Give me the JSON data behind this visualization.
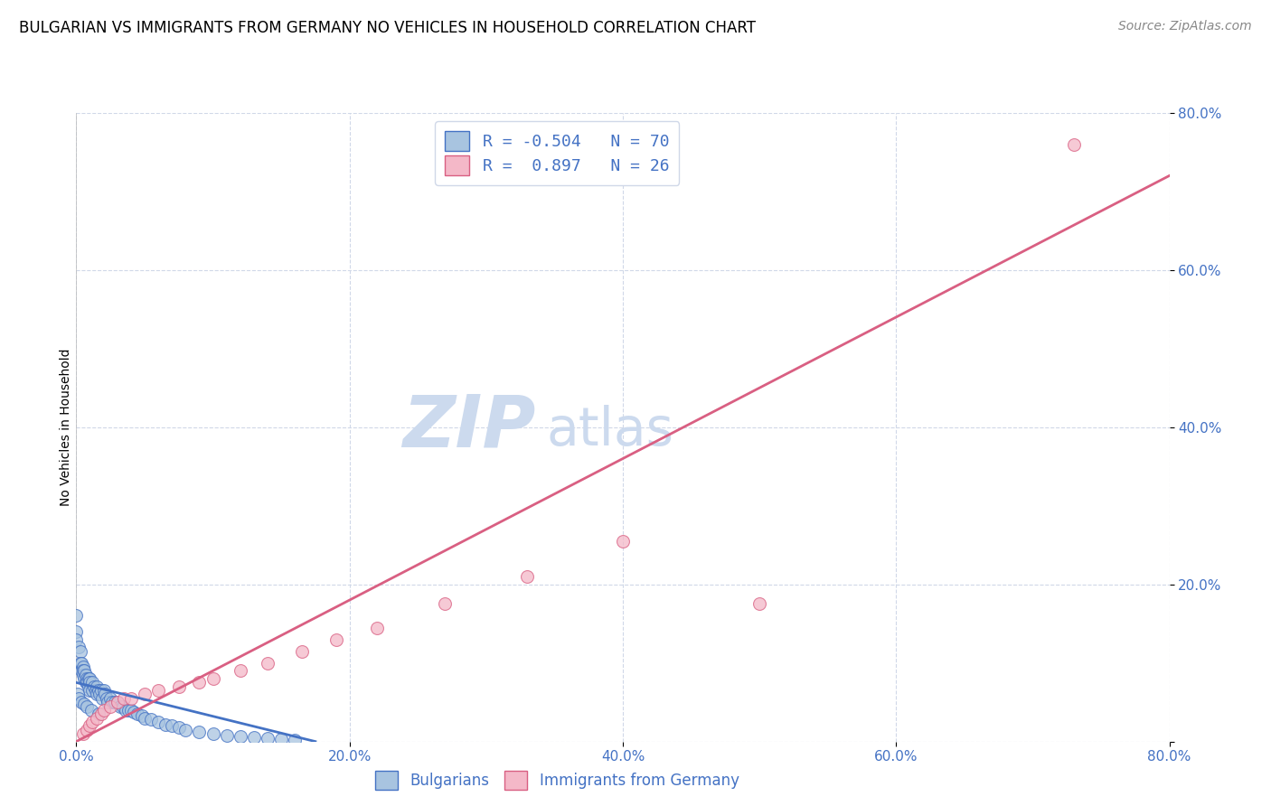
{
  "title": "BULGARIAN VS IMMIGRANTS FROM GERMANY NO VEHICLES IN HOUSEHOLD CORRELATION CHART",
  "source": "Source: ZipAtlas.com",
  "ylabel": "No Vehicles in Household",
  "xlim": [
    0.0,
    0.8
  ],
  "ylim": [
    0.0,
    0.8
  ],
  "xtick_vals": [
    0.0,
    0.2,
    0.4,
    0.6,
    0.8
  ],
  "ytick_vals": [
    0.0,
    0.2,
    0.4,
    0.6,
    0.8
  ],
  "blue_color": "#a8c4e0",
  "blue_edge_color": "#4472c4",
  "pink_color": "#f4b8c8",
  "pink_edge_color": "#d95f82",
  "axis_color": "#4472c4",
  "watermark_zip": "ZIP",
  "watermark_atlas": "atlas",
  "watermark_color": "#ccdaee",
  "bg_color": "#ffffff",
  "grid_color": "#d0d8e8",
  "title_fontsize": 12,
  "legend_r1": "-0.504",
  "legend_n1": "70",
  "legend_r2": "0.897",
  "legend_n2": "26",
  "bulgarians_x": [
    0.0,
    0.0,
    0.0,
    0.002,
    0.003,
    0.003,
    0.004,
    0.004,
    0.005,
    0.005,
    0.005,
    0.006,
    0.006,
    0.007,
    0.007,
    0.008,
    0.008,
    0.009,
    0.009,
    0.01,
    0.01,
    0.01,
    0.012,
    0.012,
    0.013,
    0.014,
    0.015,
    0.015,
    0.016,
    0.017,
    0.018,
    0.019,
    0.02,
    0.021,
    0.022,
    0.023,
    0.025,
    0.026,
    0.028,
    0.03,
    0.032,
    0.034,
    0.036,
    0.038,
    0.04,
    0.042,
    0.045,
    0.048,
    0.05,
    0.055,
    0.06,
    0.065,
    0.07,
    0.075,
    0.08,
    0.09,
    0.1,
    0.11,
    0.12,
    0.13,
    0.14,
    0.15,
    0.16,
    0.001,
    0.002,
    0.004,
    0.006,
    0.008,
    0.011,
    0.016
  ],
  "bulgarians_y": [
    0.16,
    0.14,
    0.13,
    0.12,
    0.115,
    0.1,
    0.1,
    0.09,
    0.095,
    0.09,
    0.085,
    0.09,
    0.08,
    0.085,
    0.075,
    0.08,
    0.075,
    0.08,
    0.07,
    0.08,
    0.075,
    0.065,
    0.075,
    0.065,
    0.07,
    0.065,
    0.07,
    0.06,
    0.065,
    0.06,
    0.065,
    0.055,
    0.065,
    0.06,
    0.055,
    0.05,
    0.055,
    0.05,
    0.05,
    0.05,
    0.045,
    0.045,
    0.04,
    0.04,
    0.04,
    0.038,
    0.035,
    0.033,
    0.03,
    0.028,
    0.025,
    0.022,
    0.02,
    0.018,
    0.015,
    0.012,
    0.01,
    0.008,
    0.006,
    0.005,
    0.004,
    0.003,
    0.002,
    0.06,
    0.055,
    0.05,
    0.048,
    0.045,
    0.04,
    0.035
  ],
  "immigrants_x": [
    0.005,
    0.008,
    0.01,
    0.012,
    0.015,
    0.018,
    0.02,
    0.025,
    0.03,
    0.035,
    0.04,
    0.05,
    0.06,
    0.075,
    0.09,
    0.1,
    0.12,
    0.14,
    0.165,
    0.19,
    0.22,
    0.27,
    0.33,
    0.4,
    0.5,
    0.73
  ],
  "immigrants_y": [
    0.01,
    0.015,
    0.02,
    0.025,
    0.03,
    0.035,
    0.04,
    0.045,
    0.05,
    0.055,
    0.055,
    0.06,
    0.065,
    0.07,
    0.075,
    0.08,
    0.09,
    0.1,
    0.115,
    0.13,
    0.145,
    0.175,
    0.21,
    0.255,
    0.175,
    0.76
  ],
  "blue_trend_x": [
    0.0,
    0.175
  ],
  "blue_trend_y": [
    0.075,
    0.0
  ],
  "pink_trend_x": [
    0.0,
    0.8
  ],
  "pink_trend_y": [
    0.0,
    0.72
  ],
  "bottom_legend_labels": [
    "Bulgarians",
    "Immigrants from Germany"
  ]
}
